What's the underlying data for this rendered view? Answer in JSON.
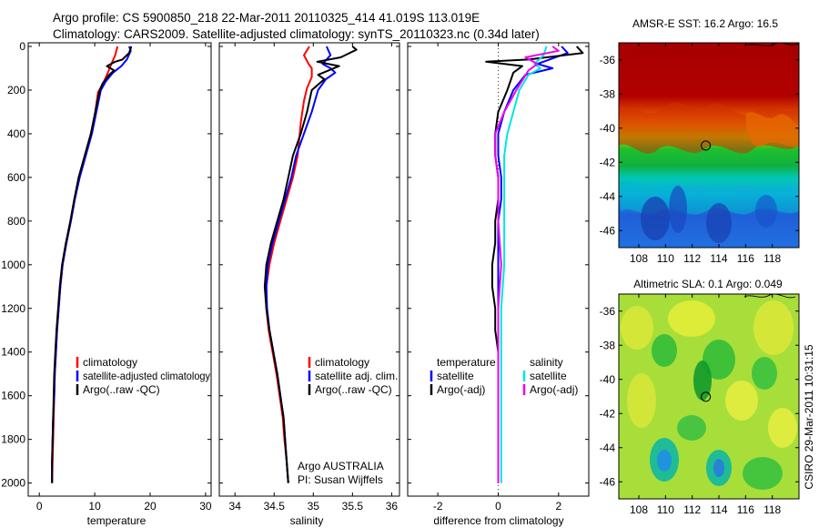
{
  "title_line1": "Argo profile: CS 5900850_218 22-Mar-2011 20110325_414 41.019S 113.019E",
  "title_line2": "Climatology: CARS2009. Satellite-adjusted climatology: synTS_20110323.nc (0.34d later)",
  "credit": "CSIRO 29-Mar-2011 10:31:15",
  "colors": {
    "red": "#ff0000",
    "blue": "#0000ff",
    "black": "#000000",
    "cyan": "#00e5e5",
    "magenta": "#ee00ee"
  },
  "chart_data": [
    {
      "type": "line",
      "id": "temp",
      "xlabel": "temperature",
      "xlim": [
        -2,
        31
      ],
      "ylim": [
        0,
        2060
      ],
      "xticks": [
        "0",
        "10",
        "20",
        "30"
      ],
      "xtick_values": [
        0,
        10,
        20,
        30
      ],
      "yticks": [
        "0",
        "200",
        "400",
        "600",
        "800",
        "1000",
        "1200",
        "1400",
        "1600",
        "1800",
        "2000"
      ],
      "ytick_values": [
        0,
        200,
        400,
        600,
        800,
        1000,
        1200,
        1400,
        1600,
        1800,
        2000
      ],
      "legend": [
        "climatology",
        "satellite-adjusted climatology",
        "Argo(..raw -QC)"
      ],
      "series": [
        {
          "color": "red",
          "points": [
            [
              14.1,
              0
            ],
            [
              13.7,
              40
            ],
            [
              13.0,
              80
            ],
            [
              12.2,
              130
            ],
            [
              11.5,
              170
            ],
            [
              10.6,
              210
            ],
            [
              10.1,
              300
            ],
            [
              9.4,
              400
            ],
            [
              8.3,
              500
            ],
            [
              7.2,
              600
            ],
            [
              6.4,
              700
            ],
            [
              5.7,
              800
            ],
            [
              4.9,
              900
            ],
            [
              4.2,
              1000
            ],
            [
              3.8,
              1100
            ],
            [
              3.5,
              1200
            ],
            [
              3.2,
              1300
            ],
            [
              3.0,
              1400
            ],
            [
              2.8,
              1500
            ],
            [
              2.7,
              1600
            ],
            [
              2.6,
              1700
            ],
            [
              2.5,
              1800
            ],
            [
              2.4,
              1900
            ],
            [
              2.3,
              2000
            ]
          ]
        },
        {
          "color": "blue",
          "points": [
            [
              16.2,
              0
            ],
            [
              16.5,
              20
            ],
            [
              15.8,
              60
            ],
            [
              14.8,
              90
            ],
            [
              13.3,
              120
            ],
            [
              12.0,
              160
            ],
            [
              11.1,
              200
            ],
            [
              10.3,
              300
            ],
            [
              9.5,
              400
            ],
            [
              8.4,
              500
            ],
            [
              7.3,
              600
            ],
            [
              6.4,
              700
            ],
            [
              5.7,
              800
            ],
            [
              4.9,
              900
            ],
            [
              4.2,
              1000
            ],
            [
              3.8,
              1100
            ],
            [
              3.5,
              1200
            ],
            [
              3.2,
              1300
            ],
            [
              3.0,
              1400
            ],
            [
              2.8,
              1500
            ],
            [
              2.7,
              1600
            ],
            [
              2.5,
              1700
            ],
            [
              2.4,
              1800
            ],
            [
              2.3,
              1900
            ],
            [
              2.3,
              2000
            ]
          ]
        },
        {
          "color": "black",
          "points": [
            [
              16.6,
              0
            ],
            [
              16.2,
              30
            ],
            [
              15.0,
              60
            ],
            [
              13.7,
              70
            ],
            [
              12.2,
              90
            ],
            [
              13.5,
              110
            ],
            [
              12.6,
              130
            ],
            [
              11.4,
              170
            ],
            [
              10.8,
              210
            ],
            [
              10.1,
              300
            ],
            [
              9.3,
              400
            ],
            [
              8.2,
              500
            ],
            [
              7.1,
              600
            ],
            [
              6.3,
              700
            ],
            [
              5.6,
              800
            ],
            [
              4.8,
              900
            ],
            [
              4.1,
              1000
            ],
            [
              3.7,
              1100
            ],
            [
              3.4,
              1200
            ],
            [
              3.1,
              1300
            ],
            [
              2.9,
              1400
            ],
            [
              2.7,
              1500
            ],
            [
              2.6,
              1600
            ],
            [
              2.5,
              1700
            ],
            [
              2.4,
              1800
            ],
            [
              2.3,
              1900
            ],
            [
              2.3,
              2000
            ]
          ]
        }
      ]
    },
    {
      "type": "line",
      "id": "salinity",
      "xlabel": "salinity",
      "xlim": [
        33.8,
        36.1
      ],
      "ylim": [
        0,
        2060
      ],
      "xticks": [
        "34",
        "34.5",
        "35",
        "35.5",
        "36"
      ],
      "xtick_values": [
        34,
        34.5,
        35,
        35.5,
        36
      ],
      "legend": [
        "climatology",
        "satellite adj. clim.",
        "Argo(..raw -QC)"
      ],
      "annotation": [
        "Argo AUSTRALIA",
        "PI: Susan Wijffels"
      ],
      "series": [
        {
          "color": "red",
          "points": [
            [
              34.95,
              0
            ],
            [
              34.88,
              40
            ],
            [
              34.94,
              80
            ],
            [
              34.98,
              100
            ],
            [
              34.98,
              140
            ],
            [
              34.92,
              190
            ],
            [
              34.88,
              250
            ],
            [
              34.84,
              350
            ],
            [
              34.8,
              500
            ],
            [
              34.74,
              600
            ],
            [
              34.66,
              700
            ],
            [
              34.58,
              800
            ],
            [
              34.5,
              900
            ],
            [
              34.44,
              1000
            ],
            [
              34.4,
              1100
            ],
            [
              34.4,
              1200
            ],
            [
              34.43,
              1300
            ],
            [
              34.48,
              1400
            ],
            [
              34.53,
              1500
            ],
            [
              34.57,
              1600
            ],
            [
              34.61,
              1700
            ],
            [
              34.63,
              1800
            ],
            [
              34.66,
              1900
            ],
            [
              34.68,
              2000
            ]
          ]
        },
        {
          "color": "blue",
          "points": [
            [
              35.17,
              0
            ],
            [
              35.22,
              40
            ],
            [
              35.12,
              80
            ],
            [
              35.22,
              100
            ],
            [
              35.28,
              120
            ],
            [
              35.16,
              150
            ],
            [
              35.06,
              200
            ],
            [
              34.98,
              300
            ],
            [
              34.88,
              400
            ],
            [
              34.78,
              500
            ],
            [
              34.72,
              600
            ],
            [
              34.64,
              700
            ],
            [
              34.56,
              800
            ],
            [
              34.48,
              900
            ],
            [
              34.42,
              1000
            ],
            [
              34.4,
              1100
            ],
            [
              34.41,
              1200
            ],
            [
              34.44,
              1300
            ],
            [
              34.49,
              1400
            ],
            [
              34.54,
              1500
            ],
            [
              34.58,
              1600
            ],
            [
              34.62,
              1700
            ],
            [
              34.64,
              1800
            ],
            [
              34.66,
              1900
            ],
            [
              34.68,
              2000
            ]
          ]
        },
        {
          "color": "black",
          "points": [
            [
              35.5,
              0
            ],
            [
              35.55,
              15
            ],
            [
              35.35,
              50
            ],
            [
              35.05,
              70
            ],
            [
              35.33,
              90
            ],
            [
              35.06,
              130
            ],
            [
              35.14,
              150
            ],
            [
              34.98,
              200
            ],
            [
              34.92,
              300
            ],
            [
              34.84,
              400
            ],
            [
              34.74,
              500
            ],
            [
              34.68,
              600
            ],
            [
              34.62,
              700
            ],
            [
              34.54,
              800
            ],
            [
              34.46,
              900
            ],
            [
              34.4,
              1000
            ],
            [
              34.38,
              1100
            ],
            [
              34.4,
              1200
            ],
            [
              34.44,
              1300
            ],
            [
              34.49,
              1400
            ],
            [
              34.54,
              1500
            ],
            [
              34.58,
              1600
            ],
            [
              34.62,
              1700
            ],
            [
              34.64,
              1800
            ],
            [
              34.66,
              1900
            ],
            [
              34.68,
              2000
            ]
          ]
        }
      ]
    },
    {
      "type": "line",
      "id": "difference",
      "xlabel": "difference from climatology",
      "xlim": [
        -3.0,
        3.0
      ],
      "ylim": [
        0,
        2060
      ],
      "xticks": [
        "-2",
        "0",
        "2"
      ],
      "xtick_values": [
        -2,
        0,
        2
      ],
      "legend_left_header": "temperature",
      "legend_left": [
        "satellite",
        "Argo(-adj)"
      ],
      "legend_right_header": "salinity",
      "legend_right": [
        "satellite",
        "Argo(-adj)"
      ],
      "series": [
        {
          "color": "blue",
          "points": [
            [
              2.1,
              0
            ],
            [
              2.3,
              30
            ],
            [
              1.3,
              80
            ],
            [
              1.8,
              100
            ],
            [
              0.9,
              130
            ],
            [
              0.5,
              200
            ],
            [
              0.2,
              300
            ],
            [
              0.0,
              400
            ],
            [
              0.0,
              500
            ],
            [
              0.1,
              600
            ],
            [
              0.1,
              700
            ],
            [
              0.0,
              800
            ],
            [
              0.0,
              900
            ],
            [
              0.0,
              1000
            ],
            [
              0.0,
              1100
            ],
            [
              0.0,
              1200
            ],
            [
              0.0,
              1400
            ],
            [
              0.0,
              1600
            ],
            [
              0.0,
              1800
            ],
            [
              0.0,
              2000
            ]
          ]
        },
        {
          "color": "black",
          "points": [
            [
              2.6,
              0
            ],
            [
              2.8,
              30
            ],
            [
              1.0,
              60
            ],
            [
              -0.4,
              70
            ],
            [
              0.8,
              90
            ],
            [
              0.5,
              120
            ],
            [
              0.3,
              200
            ],
            [
              0.0,
              300
            ],
            [
              -0.1,
              400
            ],
            [
              -0.1,
              500
            ],
            [
              0.0,
              600
            ],
            [
              0.0,
              700
            ],
            [
              -0.1,
              800
            ],
            [
              -0.1,
              900
            ],
            [
              -0.2,
              1000
            ],
            [
              -0.2,
              1100
            ],
            [
              -0.1,
              1200
            ],
            [
              -0.1,
              1300
            ],
            [
              0.0,
              1400
            ],
            [
              0.0,
              1600
            ],
            [
              0.0,
              1800
            ],
            [
              0.0,
              2000
            ]
          ]
        },
        {
          "color": "cyan",
          "points": [
            [
              1.6,
              0
            ],
            [
              1.5,
              40
            ],
            [
              1.2,
              80
            ],
            [
              1.4,
              100
            ],
            [
              1.0,
              130
            ],
            [
              0.7,
              200
            ],
            [
              0.5,
              300
            ],
            [
              0.3,
              400
            ],
            [
              0.2,
              500
            ],
            [
              0.2,
              600
            ],
            [
              0.2,
              800
            ],
            [
              0.2,
              1000
            ],
            [
              0.1,
              1200
            ],
            [
              0.1,
              1400
            ],
            [
              0.1,
              1600
            ],
            [
              0.1,
              1800
            ],
            [
              0.1,
              2000
            ]
          ]
        },
        {
          "color": "magenta",
          "points": [
            [
              1.8,
              0
            ],
            [
              2.0,
              20
            ],
            [
              0.9,
              50
            ],
            [
              1.3,
              80
            ],
            [
              1.0,
              110
            ],
            [
              0.6,
              200
            ],
            [
              0.2,
              300
            ],
            [
              -0.1,
              400
            ],
            [
              -0.1,
              500
            ],
            [
              0.0,
              600
            ],
            [
              0.0,
              800
            ],
            [
              0.1,
              1000
            ],
            [
              0.0,
              1200
            ],
            [
              0.0,
              1400
            ],
            [
              0.0,
              1600
            ],
            [
              0.0,
              1800
            ],
            [
              0.0,
              2000
            ]
          ]
        }
      ]
    },
    {
      "type": "heatmap",
      "id": "sst_map",
      "title": "AMSR-E SST: 16.2  Argo: 16.5",
      "xlim": [
        106.5,
        120
      ],
      "ylim": [
        -47,
        -35
      ],
      "xticks": [
        "108",
        "110",
        "112",
        "114",
        "116",
        "118"
      ],
      "xtick_values": [
        108,
        110,
        112,
        114,
        116,
        118
      ],
      "yticks": [
        "-36",
        "-38",
        "-40",
        "-42",
        "-44",
        "-46"
      ],
      "ytick_values": [
        -36,
        -38,
        -40,
        -42,
        -44,
        -46
      ],
      "marker": [
        113.019,
        -41.019
      ]
    },
    {
      "type": "heatmap",
      "id": "sla_map",
      "title": "Altimetric SLA: 0.1  Argo: 0.049",
      "xlim": [
        106.5,
        120
      ],
      "ylim": [
        -47,
        -35
      ],
      "xticks": [
        "108",
        "110",
        "112",
        "114",
        "116",
        "118"
      ],
      "xtick_values": [
        108,
        110,
        112,
        114,
        116,
        118
      ],
      "yticks": [
        "-36",
        "-38",
        "-40",
        "-42",
        "-44",
        "-46"
      ],
      "ytick_values": [
        -36,
        -38,
        -40,
        -42,
        -44,
        -46
      ],
      "marker": [
        113.019,
        -41.019
      ]
    }
  ]
}
